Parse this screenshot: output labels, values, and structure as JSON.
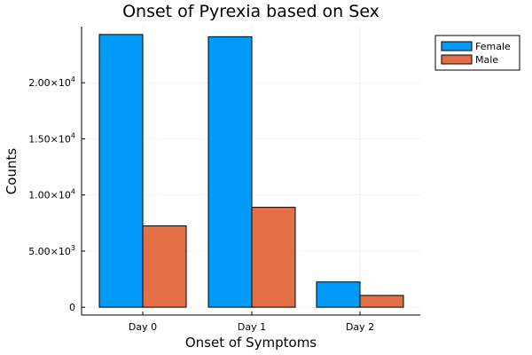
{
  "chart_data": {
    "type": "bar",
    "title": "Onset of Pyrexia based on Sex",
    "xlabel": "Onset of Symptoms",
    "ylabel": "Counts",
    "categories": [
      "Day 0",
      "Day 1",
      "Day 2"
    ],
    "series": [
      {
        "name": "Female",
        "values": [
          24300,
          24100,
          2250
        ],
        "color": "#009af9"
      },
      {
        "name": "Male",
        "values": [
          7250,
          8900,
          1050
        ],
        "color": "#e26f46"
      }
    ],
    "ylim": [
      -700,
      25000
    ],
    "yticks": [
      {
        "value": 0,
        "mantissa": "0",
        "exp": ""
      },
      {
        "value": 5000,
        "mantissa": "5.00×10",
        "exp": "3"
      },
      {
        "value": 10000,
        "mantissa": "1.00×10",
        "exp": "4"
      },
      {
        "value": 15000,
        "mantissa": "1.50×10",
        "exp": "4"
      },
      {
        "value": 20000,
        "mantissa": "2.00×10",
        "exp": "4"
      }
    ],
    "grid": true,
    "legend_position": "top-right"
  }
}
